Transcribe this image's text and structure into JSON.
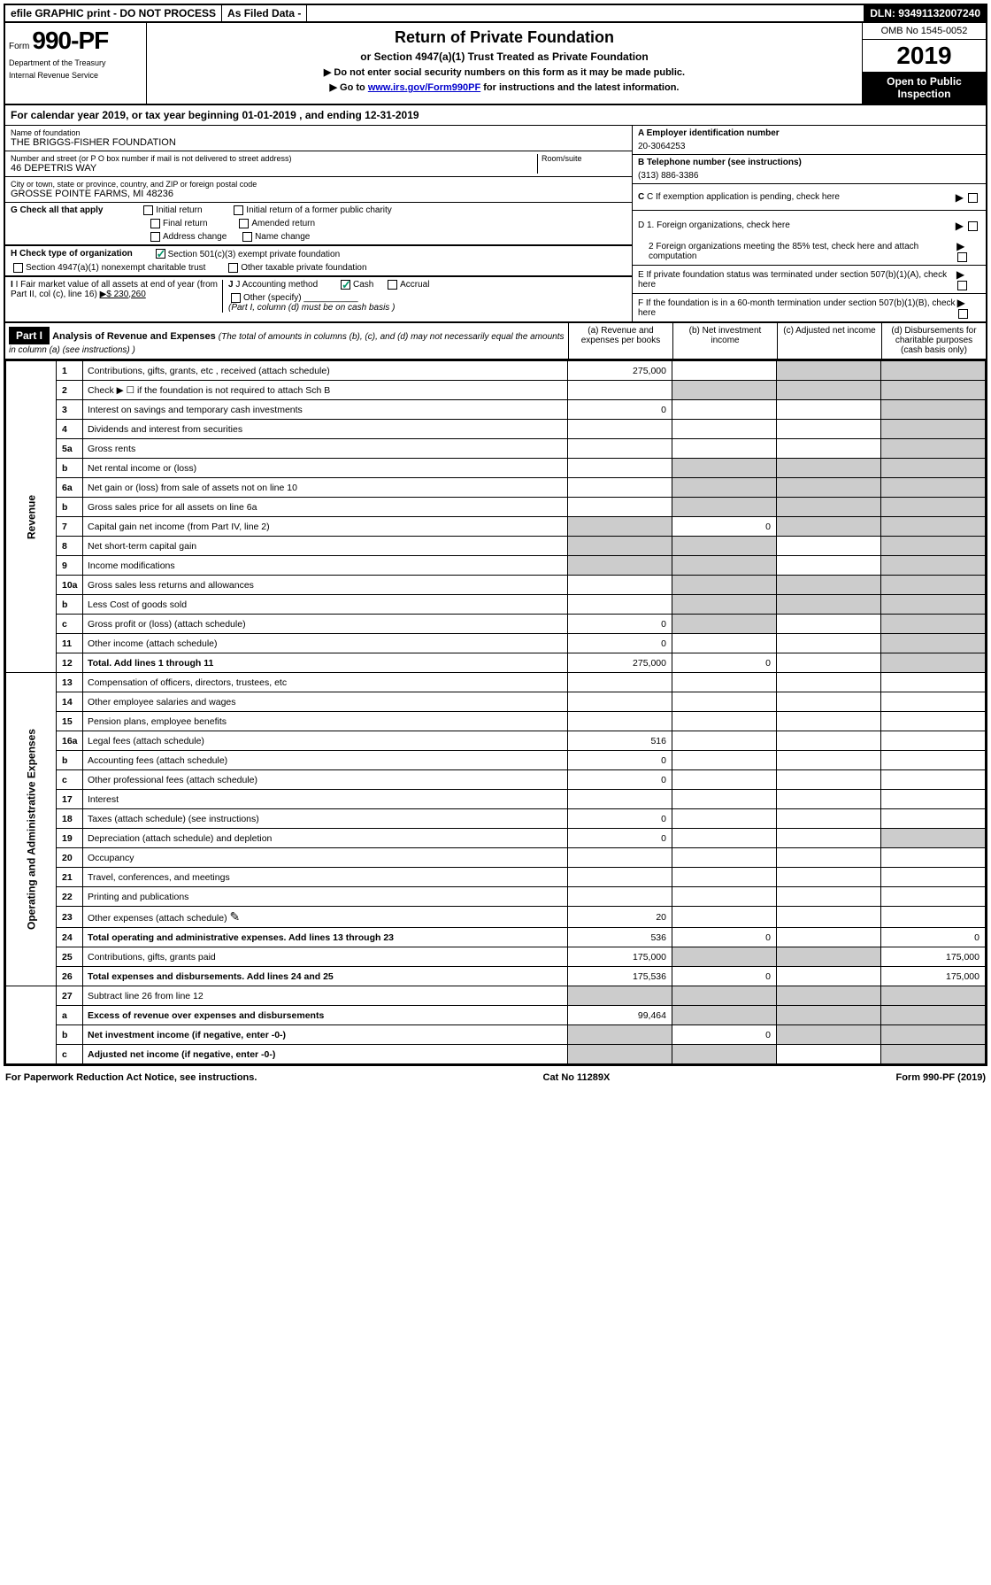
{
  "topbar": {
    "efile": "efile GRAPHIC print - DO NOT PROCESS",
    "asfiled": "As Filed Data -",
    "dln": "DLN: 93491132007240"
  },
  "header": {
    "form_prefix": "Form",
    "form_number": "990-PF",
    "dept1": "Department of the Treasury",
    "dept2": "Internal Revenue Service",
    "title": "Return of Private Foundation",
    "subtitle": "or Section 4947(a)(1) Trust Treated as Private Foundation",
    "instr1": "▶ Do not enter social security numbers on this form as it may be made public.",
    "instr2_pre": "▶ Go to ",
    "instr2_link": "www.irs.gov/Form990PF",
    "instr2_post": " for instructions and the latest information.",
    "omb": "OMB No 1545-0052",
    "year": "2019",
    "open": "Open to Public Inspection"
  },
  "cal_year": "For calendar year 2019, or tax year beginning 01-01-2019          , and ending 12-31-2019",
  "info": {
    "name_label": "Name of foundation",
    "name_value": "THE BRIGGS-FISHER FOUNDATION",
    "addr_label": "Number and street (or P O  box number if mail is not delivered to street address)",
    "addr_value": "46 DEPETRIS WAY",
    "room_label": "Room/suite",
    "city_label": "City or town, state or province, country, and ZIP or foreign postal code",
    "city_value": "GROSSE POINTE FARMS, MI  48236",
    "a_label": "A Employer identification number",
    "a_value": "20-3064253",
    "b_label": "B Telephone number (see instructions)",
    "b_value": "(313) 886-3386",
    "c_label": "C If exemption application is pending, check here",
    "d1_label": "D 1. Foreign organizations, check here",
    "d2_label": "2 Foreign organizations meeting the 85% test, check here and attach computation",
    "e_label": "E  If private foundation status was terminated under section 507(b)(1)(A), check here",
    "f_label": "F  If the foundation is in a 60-month termination under section 507(b)(1)(B), check here"
  },
  "g": {
    "label": "G Check all that apply",
    "opts": [
      "Initial return",
      "Initial return of a former public charity",
      "Final return",
      "Amended return",
      "Address change",
      "Name change"
    ]
  },
  "h": {
    "label": "H Check type of organization",
    "opt1": "Section 501(c)(3) exempt private foundation",
    "opt2": "Section 4947(a)(1) nonexempt charitable trust",
    "opt3": "Other taxable private foundation"
  },
  "i": {
    "label": "I Fair market value of all assets at end of year (from Part II, col  (c), line 16)",
    "value": "▶$  230,260"
  },
  "j": {
    "label": "J Accounting method",
    "cash": "Cash",
    "accrual": "Accrual",
    "other": "Other (specify)",
    "note": "(Part I, column (d) must be on cash basis )"
  },
  "part1": {
    "badge": "Part I",
    "title": "Analysis of Revenue and Expenses",
    "note": "(The total of amounts in columns (b), (c), and (d) may not necessarily equal the amounts in column (a) (see instructions) )",
    "col_a": "(a) Revenue and expenses per books",
    "col_b": "(b) Net investment income",
    "col_c": "(c) Adjusted net income",
    "col_d": "(d) Disbursements for charitable purposes (cash basis only)"
  },
  "sections": {
    "revenue": "Revenue",
    "expenses": "Operating and Administrative Expenses"
  },
  "rows": [
    {
      "n": "1",
      "d": "Contributions, gifts, grants, etc , received (attach schedule)",
      "a": "275,000",
      "b": "",
      "c": "shaded",
      "dv": "shaded"
    },
    {
      "n": "2",
      "d": "Check ▶ ☐ if the foundation is not required to attach Sch  B",
      "a": "",
      "b": "shaded",
      "c": "shaded",
      "dv": "shaded"
    },
    {
      "n": "3",
      "d": "Interest on savings and temporary cash investments",
      "a": "0",
      "b": "",
      "c": "",
      "dv": "shaded"
    },
    {
      "n": "4",
      "d": "Dividends and interest from securities",
      "a": "",
      "b": "",
      "c": "",
      "dv": "shaded"
    },
    {
      "n": "5a",
      "d": "Gross rents",
      "a": "",
      "b": "",
      "c": "",
      "dv": "shaded"
    },
    {
      "n": "b",
      "d": "Net rental income or (loss)",
      "a": "",
      "b": "shaded",
      "c": "shaded",
      "dv": "shaded"
    },
    {
      "n": "6a",
      "d": "Net gain or (loss) from sale of assets not on line 10",
      "a": "",
      "b": "shaded",
      "c": "shaded",
      "dv": "shaded"
    },
    {
      "n": "b",
      "d": "Gross sales price for all assets on line 6a",
      "a": "",
      "b": "shaded",
      "c": "shaded",
      "dv": "shaded"
    },
    {
      "n": "7",
      "d": "Capital gain net income (from Part IV, line 2)",
      "a": "shaded",
      "b": "0",
      "c": "shaded",
      "dv": "shaded"
    },
    {
      "n": "8",
      "d": "Net short-term capital gain",
      "a": "shaded",
      "b": "shaded",
      "c": "",
      "dv": "shaded"
    },
    {
      "n": "9",
      "d": "Income modifications",
      "a": "shaded",
      "b": "shaded",
      "c": "",
      "dv": "shaded"
    },
    {
      "n": "10a",
      "d": "Gross sales less returns and allowances",
      "a": "",
      "b": "shaded",
      "c": "shaded",
      "dv": "shaded"
    },
    {
      "n": "b",
      "d": "Less  Cost of goods sold",
      "a": "",
      "b": "shaded",
      "c": "shaded",
      "dv": "shaded"
    },
    {
      "n": "c",
      "d": "Gross profit or (loss) (attach schedule)",
      "a": "0",
      "b": "shaded",
      "c": "",
      "dv": "shaded"
    },
    {
      "n": "11",
      "d": "Other income (attach schedule)",
      "a": "0",
      "b": "",
      "c": "",
      "dv": "shaded"
    },
    {
      "n": "12",
      "d": "Total. Add lines 1 through 11",
      "a": "275,000",
      "b": "0",
      "c": "",
      "dv": "shaded",
      "bold": true
    }
  ],
  "exp_rows": [
    {
      "n": "13",
      "d": "Compensation of officers, directors, trustees, etc",
      "a": "",
      "b": "",
      "c": "",
      "dv": ""
    },
    {
      "n": "14",
      "d": "Other employee salaries and wages",
      "a": "",
      "b": "",
      "c": "",
      "dv": ""
    },
    {
      "n": "15",
      "d": "Pension plans, employee benefits",
      "a": "",
      "b": "",
      "c": "",
      "dv": ""
    },
    {
      "n": "16a",
      "d": "Legal fees (attach schedule)",
      "a": "516",
      "b": "",
      "c": "",
      "dv": ""
    },
    {
      "n": "b",
      "d": "Accounting fees (attach schedule)",
      "a": "0",
      "b": "",
      "c": "",
      "dv": ""
    },
    {
      "n": "c",
      "d": "Other professional fees (attach schedule)",
      "a": "0",
      "b": "",
      "c": "",
      "dv": ""
    },
    {
      "n": "17",
      "d": "Interest",
      "a": "",
      "b": "",
      "c": "",
      "dv": ""
    },
    {
      "n": "18",
      "d": "Taxes (attach schedule) (see instructions)",
      "a": "0",
      "b": "",
      "c": "",
      "dv": ""
    },
    {
      "n": "19",
      "d": "Depreciation (attach schedule) and depletion",
      "a": "0",
      "b": "",
      "c": "",
      "dv": "shaded"
    },
    {
      "n": "20",
      "d": "Occupancy",
      "a": "",
      "b": "",
      "c": "",
      "dv": ""
    },
    {
      "n": "21",
      "d": "Travel, conferences, and meetings",
      "a": "",
      "b": "",
      "c": "",
      "dv": ""
    },
    {
      "n": "22",
      "d": "Printing and publications",
      "a": "",
      "b": "",
      "c": "",
      "dv": ""
    },
    {
      "n": "23",
      "d": "Other expenses (attach schedule)",
      "a": "20",
      "b": "",
      "c": "",
      "dv": "",
      "icon": true
    },
    {
      "n": "24",
      "d": "Total operating and administrative expenses. Add lines 13 through 23",
      "a": "536",
      "b": "0",
      "c": "",
      "dv": "0",
      "bold": true
    },
    {
      "n": "25",
      "d": "Contributions, gifts, grants paid",
      "a": "175,000",
      "b": "shaded",
      "c": "shaded",
      "dv": "175,000"
    },
    {
      "n": "26",
      "d": "Total expenses and disbursements. Add lines 24 and 25",
      "a": "175,536",
      "b": "0",
      "c": "",
      "dv": "175,000",
      "bold": true
    }
  ],
  "bottom_rows": [
    {
      "n": "27",
      "d": "Subtract line 26 from line 12",
      "a": "shaded",
      "b": "shaded",
      "c": "shaded",
      "dv": "shaded"
    },
    {
      "n": "a",
      "d": "Excess of revenue over expenses and disbursements",
      "a": "99,464",
      "b": "shaded",
      "c": "shaded",
      "dv": "shaded",
      "bold": true
    },
    {
      "n": "b",
      "d": "Net investment income (if negative, enter -0-)",
      "a": "shaded",
      "b": "0",
      "c": "shaded",
      "dv": "shaded",
      "bold": true
    },
    {
      "n": "c",
      "d": "Adjusted net income (if negative, enter -0-)",
      "a": "shaded",
      "b": "shaded",
      "c": "",
      "dv": "shaded",
      "bold": true
    }
  ],
  "footer": {
    "left": "For Paperwork Reduction Act Notice, see instructions.",
    "mid": "Cat  No  11289X",
    "right": "Form 990-PF (2019)"
  }
}
